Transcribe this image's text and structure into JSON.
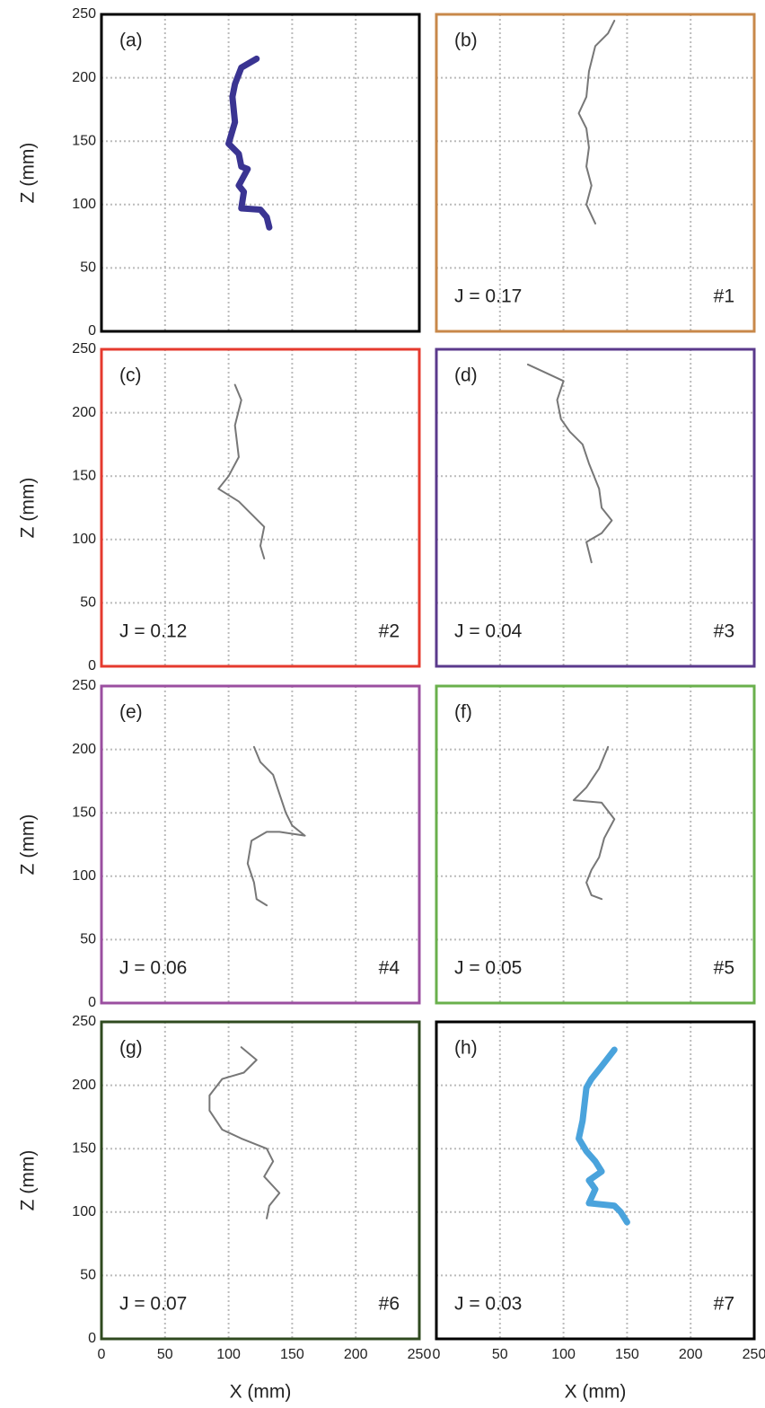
{
  "chart_data": [
    {
      "type": "line",
      "label": "(a)",
      "border_color": "#000000",
      "line_width": 7,
      "y_label": "Z (mm)",
      "xlim": [
        0,
        250
      ],
      "ylim": [
        0,
        250
      ],
      "xticks": [
        0,
        50,
        100,
        150,
        200,
        250
      ],
      "yticks": [
        0,
        50,
        100,
        150,
        200,
        250
      ],
      "x": [
        122,
        110,
        105,
        103,
        105,
        100,
        108,
        110,
        115,
        108,
        112,
        110,
        125,
        130,
        132
      ],
      "series": [
        {
          "color": "#3a3492",
          "values": [
            215,
            208,
            195,
            185,
            165,
            148,
            140,
            130,
            128,
            115,
            110,
            97,
            96,
            90,
            82
          ]
        }
      ]
    },
    {
      "type": "line",
      "label": "(b)",
      "annotation": "J = 0.17",
      "run_label": "#1",
      "border_color": "#c8884a",
      "line_width": 2,
      "xlim": [
        0,
        250
      ],
      "ylim": [
        0,
        250
      ],
      "xticks": [
        0,
        50,
        100,
        150,
        200,
        250
      ],
      "yticks": [
        0,
        50,
        100,
        150,
        200,
        250
      ],
      "x": [
        140,
        135,
        125,
        120,
        118,
        112,
        118,
        120,
        118,
        122,
        118,
        125
      ],
      "series": [
        {
          "color": "#777777",
          "values": [
            245,
            235,
            225,
            205,
            185,
            172,
            160,
            145,
            130,
            115,
            100,
            85
          ]
        }
      ]
    },
    {
      "type": "line",
      "label": "(c)",
      "annotation": "J = 0.12",
      "run_label": "#2",
      "border_color": "#e53a2e",
      "line_width": 2,
      "y_label": "Z (mm)",
      "xlim": [
        0,
        250
      ],
      "ylim": [
        0,
        250
      ],
      "xticks": [
        0,
        50,
        100,
        150,
        200,
        250
      ],
      "yticks": [
        0,
        50,
        100,
        150,
        200,
        250
      ],
      "x": [
        105,
        110,
        105,
        108,
        100,
        92,
        108,
        118,
        128,
        125,
        128
      ],
      "series": [
        {
          "color": "#777777",
          "values": [
            222,
            210,
            190,
            165,
            150,
            140,
            130,
            120,
            110,
            95,
            85
          ]
        }
      ]
    },
    {
      "type": "line",
      "label": "(d)",
      "annotation": "J = 0.04",
      "run_label": "#3",
      "border_color": "#5b3a8c",
      "line_width": 2,
      "xlim": [
        0,
        250
      ],
      "ylim": [
        0,
        250
      ],
      "xticks": [
        0,
        50,
        100,
        150,
        200,
        250
      ],
      "yticks": [
        0,
        50,
        100,
        150,
        200,
        250
      ],
      "x": [
        72,
        85,
        100,
        95,
        98,
        105,
        115,
        120,
        128,
        130,
        138,
        130,
        118,
        122
      ],
      "series": [
        {
          "color": "#777777",
          "values": [
            238,
            232,
            225,
            210,
            195,
            185,
            175,
            160,
            140,
            125,
            115,
            105,
            98,
            82
          ]
        }
      ]
    },
    {
      "type": "line",
      "label": "(e)",
      "annotation": "J = 0.06",
      "run_label": "#4",
      "border_color": "#9b4fa0",
      "line_width": 2,
      "y_label": "Z (mm)",
      "xlim": [
        0,
        250
      ],
      "ylim": [
        0,
        250
      ],
      "xticks": [
        0,
        50,
        100,
        150,
        200,
        250
      ],
      "yticks": [
        0,
        50,
        100,
        150,
        200,
        250
      ],
      "x": [
        120,
        125,
        135,
        140,
        145,
        150,
        160,
        140,
        130,
        118,
        115,
        120,
        122,
        130
      ],
      "series": [
        {
          "color": "#777777",
          "values": [
            202,
            190,
            180,
            165,
            150,
            140,
            132,
            135,
            135,
            128,
            110,
            95,
            82,
            77
          ]
        }
      ]
    },
    {
      "type": "line",
      "label": "(f)",
      "annotation": "J = 0.05",
      "run_label": "#5",
      "border_color": "#6ab04c",
      "line_width": 2,
      "xlim": [
        0,
        250
      ],
      "ylim": [
        0,
        250
      ],
      "xticks": [
        0,
        50,
        100,
        150,
        200,
        250
      ],
      "yticks": [
        0,
        50,
        100,
        150,
        200,
        250
      ],
      "x": [
        135,
        128,
        118,
        108,
        130,
        140,
        132,
        128,
        122,
        118,
        122,
        130
      ],
      "series": [
        {
          "color": "#777777",
          "values": [
            202,
            185,
            170,
            160,
            158,
            145,
            130,
            115,
            105,
            95,
            85,
            82
          ]
        }
      ]
    },
    {
      "type": "line",
      "label": "(g)",
      "annotation": "J = 0.07",
      "run_label": "#6",
      "border_color": "#2f4a1f",
      "line_width": 2,
      "y_label": "Z (mm)",
      "x_label": "X (mm)",
      "xlim": [
        0,
        250
      ],
      "ylim": [
        0,
        250
      ],
      "xticks": [
        0,
        50,
        100,
        150,
        200,
        250
      ],
      "yticks": [
        0,
        50,
        100,
        150,
        200,
        250
      ],
      "x": [
        110,
        122,
        112,
        95,
        85,
        85,
        95,
        110,
        130,
        135,
        128,
        140,
        132,
        130
      ],
      "series": [
        {
          "color": "#777777",
          "values": [
            230,
            220,
            210,
            205,
            192,
            180,
            165,
            158,
            150,
            140,
            128,
            115,
            105,
            95
          ]
        }
      ]
    },
    {
      "type": "line",
      "label": "(h)",
      "annotation": "J = 0.03",
      "run_label": "#7",
      "border_color": "#000000",
      "line_width": 7,
      "x_label": "X (mm)",
      "xlim": [
        0,
        250
      ],
      "ylim": [
        0,
        250
      ],
      "xticks": [
        0,
        50,
        100,
        150,
        200,
        250
      ],
      "yticks": [
        0,
        50,
        100,
        150,
        200,
        250
      ],
      "x": [
        140,
        130,
        122,
        118,
        115,
        112,
        118,
        125,
        130,
        120,
        125,
        120,
        140,
        145,
        150
      ],
      "series": [
        {
          "color": "#4aa3dc",
          "values": [
            228,
            215,
            205,
            198,
            172,
            158,
            148,
            140,
            132,
            125,
            118,
            107,
            105,
            100,
            92
          ]
        }
      ]
    }
  ]
}
